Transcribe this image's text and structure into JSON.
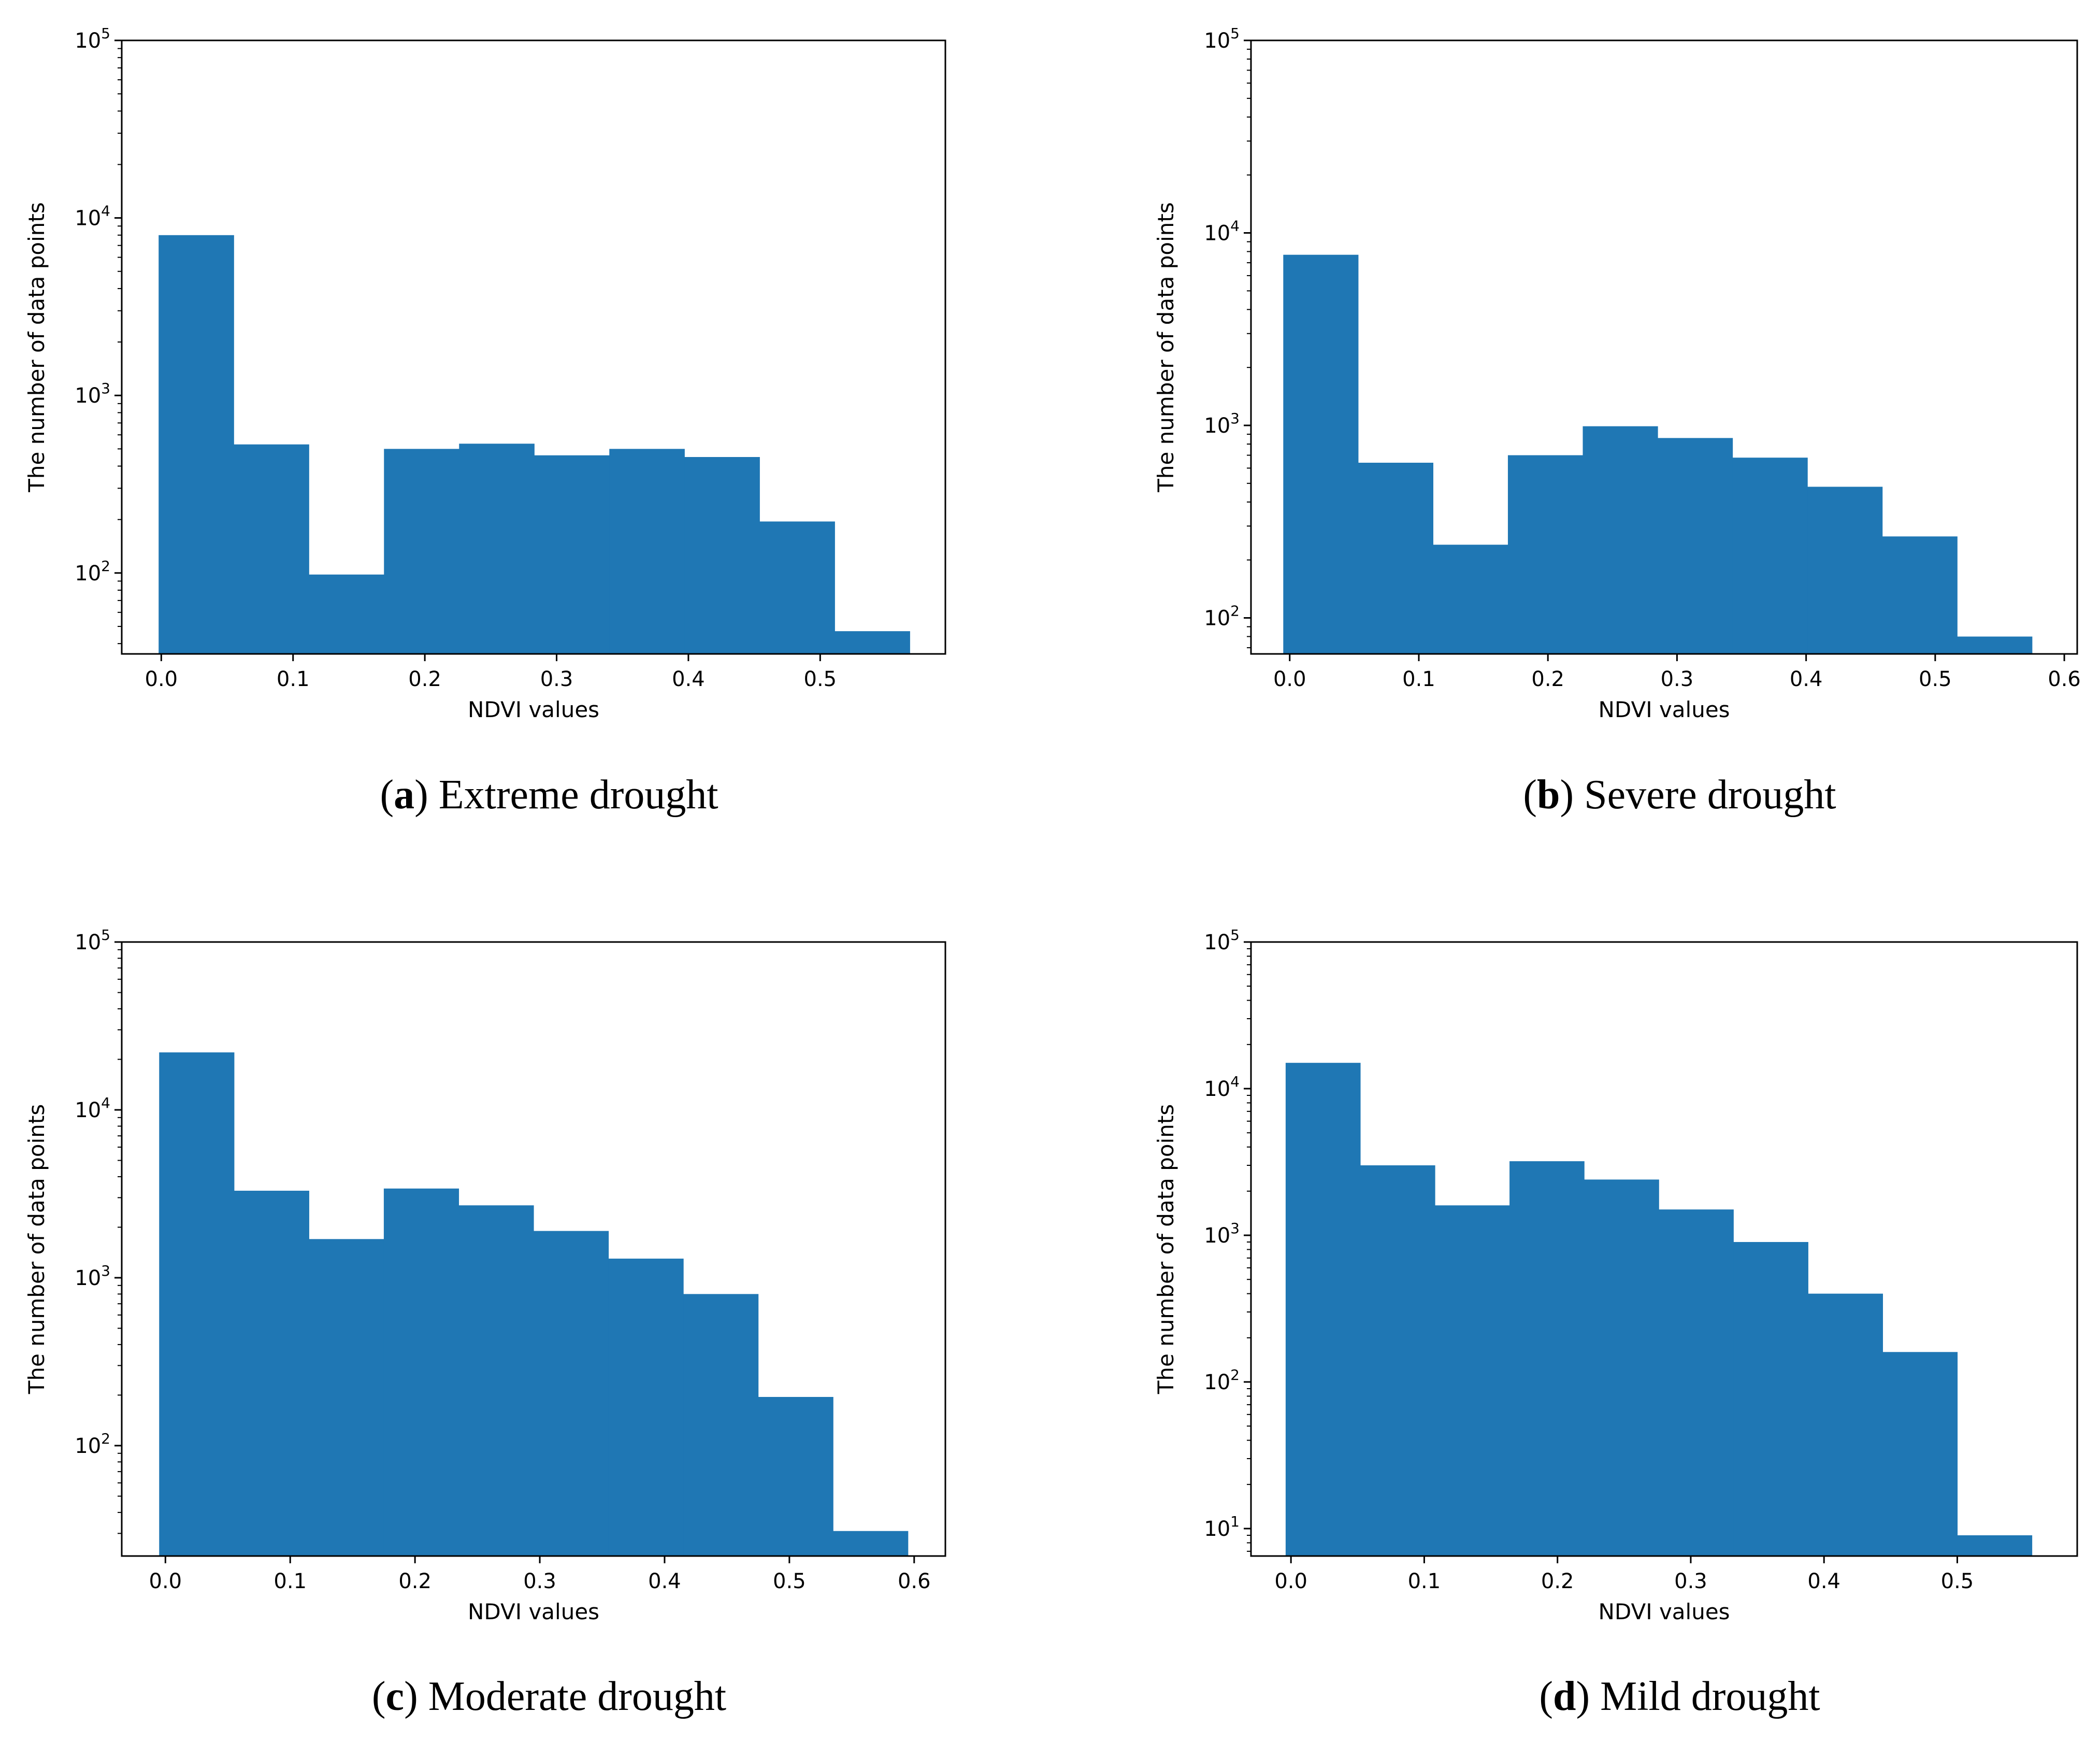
{
  "bar_color": "#1f77b4",
  "chart_data": [
    {
      "type": "bar",
      "panel_label": "a",
      "caption": "Extreme drought",
      "xlabel": "NDVI values",
      "ylabel": "The number of data points",
      "yscale": "log",
      "ylim": [
        35,
        100000
      ],
      "xlim": [
        -0.03,
        0.595
      ],
      "xticks": [
        "0.0",
        "0.1",
        "0.2",
        "0.3",
        "0.4",
        "0.5"
      ],
      "yticks": [
        "10^2",
        "10^3",
        "10^4",
        "10^5"
      ],
      "bin_edges": [
        -0.002,
        0.055,
        0.112,
        0.169,
        0.226,
        0.283,
        0.34,
        0.397,
        0.454,
        0.511,
        0.568
      ],
      "counts": [
        8000,
        530,
        98,
        500,
        535,
        460,
        500,
        450,
        195,
        47
      ]
    },
    {
      "type": "bar",
      "panel_label": "b",
      "caption": "Severe drought",
      "xlabel": "NDVI values",
      "ylabel": "The number of data points",
      "yscale": "log",
      "ylim": [
        65,
        100000
      ],
      "xlim": [
        -0.03,
        0.61
      ],
      "xticks": [
        "0.0",
        "0.1",
        "0.2",
        "0.3",
        "0.4",
        "0.5",
        "0.6"
      ],
      "yticks": [
        "10^2",
        "10^3",
        "10^4",
        "10^5"
      ],
      "bin_edges": [
        -0.005,
        0.053,
        0.111,
        0.169,
        0.227,
        0.285,
        0.343,
        0.401,
        0.459,
        0.517,
        0.575
      ],
      "counts": [
        7700,
        640,
        240,
        700,
        990,
        860,
        680,
        480,
        265,
        80
      ]
    },
    {
      "type": "bar",
      "panel_label": "c",
      "caption": "Moderate drought",
      "xlabel": "NDVI values",
      "ylabel": "The number of data points",
      "yscale": "log",
      "ylim": [
        22,
        100000
      ],
      "xlim": [
        -0.035,
        0.625
      ],
      "xticks": [
        "0.0",
        "0.1",
        "0.2",
        "0.3",
        "0.4",
        "0.5",
        "0.6"
      ],
      "yticks": [
        "10^2",
        "10^3",
        "10^4",
        "10^5"
      ],
      "bin_edges": [
        -0.005,
        0.055,
        0.115,
        0.175,
        0.235,
        0.295,
        0.355,
        0.415,
        0.475,
        0.535,
        0.595
      ],
      "counts": [
        22000,
        3300,
        1700,
        3400,
        2700,
        1900,
        1300,
        800,
        195,
        31
      ]
    },
    {
      "type": "bar",
      "panel_label": "d",
      "caption": "Mild drought",
      "xlabel": "NDVI values",
      "ylabel": "The number of data points",
      "yscale": "log",
      "ylim": [
        6.5,
        100000
      ],
      "xlim": [
        -0.03,
        0.59
      ],
      "xticks": [
        "0.0",
        "0.1",
        "0.2",
        "0.3",
        "0.4",
        "0.5"
      ],
      "yticks": [
        "10^1",
        "10^2",
        "10^3",
        "10^4",
        "10^5"
      ],
      "bin_edges": [
        -0.004,
        0.052,
        0.108,
        0.164,
        0.22,
        0.276,
        0.332,
        0.388,
        0.444,
        0.5,
        0.556
      ],
      "counts": [
        15000,
        3000,
        1600,
        3200,
        2400,
        1500,
        900,
        400,
        160,
        9
      ]
    }
  ]
}
